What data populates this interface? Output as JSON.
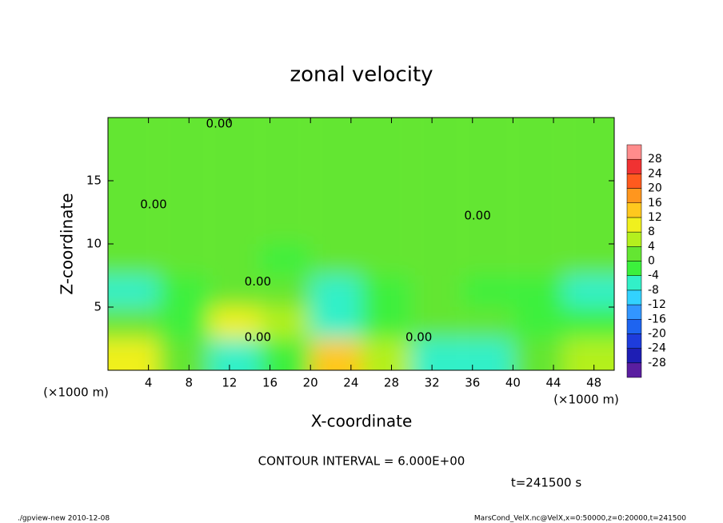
{
  "chart_data": {
    "type": "contour",
    "title": "zonal velocity",
    "xlabel": "X-coordinate",
    "ylabel": "Z-coordinate",
    "x_unit_label": "(×1000 m)",
    "y_unit_label": "(×1000 m)",
    "xlim": [
      0,
      50
    ],
    "ylim": [
      0,
      20
    ],
    "xticks": [
      4,
      8,
      12,
      16,
      20,
      24,
      28,
      32,
      36,
      40,
      44,
      48
    ],
    "yticks": [
      5,
      10,
      15
    ],
    "x": [
      2.5,
      7.5,
      12.5,
      17.5,
      22.5,
      27.5,
      32.5,
      37.5,
      42.5,
      47.5
    ],
    "z": [
      1.25,
      3.75,
      6.25,
      8.75,
      11.25,
      13.75,
      16.25,
      18.75
    ],
    "values": [
      [
        8,
        2,
        -6,
        -4,
        12,
        4,
        -8,
        -8,
        0,
        6
      ],
      [
        2,
        -2,
        8,
        4,
        -6,
        -4,
        2,
        2,
        -2,
        -2
      ],
      [
        -6,
        -2,
        2,
        0,
        -6,
        -2,
        2,
        -2,
        -4,
        -6
      ],
      [
        1,
        0,
        0,
        -0.5,
        0,
        0,
        0.5,
        0,
        0,
        0
      ],
      [
        1,
        1,
        0.5,
        1,
        1,
        1,
        1,
        0.5,
        1,
        1
      ],
      [
        1,
        1,
        1,
        1.5,
        2,
        2,
        1.5,
        1,
        1,
        1
      ],
      [
        1,
        1,
        1,
        1.5,
        2,
        2,
        1.5,
        1,
        1,
        1
      ],
      [
        1,
        1,
        1,
        1,
        1,
        1,
        1,
        1,
        1,
        1
      ]
    ],
    "colorbar_levels": [
      -28,
      -24,
      -20,
      -16,
      -12,
      -8,
      -4,
      0,
      4,
      8,
      12,
      16,
      20,
      24,
      28
    ],
    "colorbar_colors": [
      "#5a1ea0",
      "#1e1eb4",
      "#1e3cdc",
      "#1e64f0",
      "#3296ff",
      "#32d2ff",
      "#32f0c8",
      "#3cf03c",
      "#64e632",
      "#b4f01e",
      "#f0f01e",
      "#ffc81e",
      "#ff961e",
      "#ff5a1e",
      "#f03232",
      "#ff8c8c"
    ],
    "contour_labels": [
      {
        "text": "0.00",
        "x": 11,
        "z": 19.5
      },
      {
        "text": "0.00",
        "x": 4.5,
        "z": 13.1
      },
      {
        "text": "0.00",
        "x": 14.8,
        "z": 7.0
      },
      {
        "text": "0.00",
        "x": 14.8,
        "z": 2.6
      },
      {
        "text": "0.00",
        "x": 30.7,
        "z": 2.6
      },
      {
        "text": "0.00",
        "x": 36.5,
        "z": 12.2
      }
    ],
    "contour_interval_label": "CONTOUR INTERVAL = 6.000E+00",
    "time_label": "t=241500 s",
    "footer_left": "./gpview-new  2010-12-08",
    "footer_right": "MarsCond_VelX.nc@VelX,x=0:50000,z=0:20000,t=241500"
  }
}
